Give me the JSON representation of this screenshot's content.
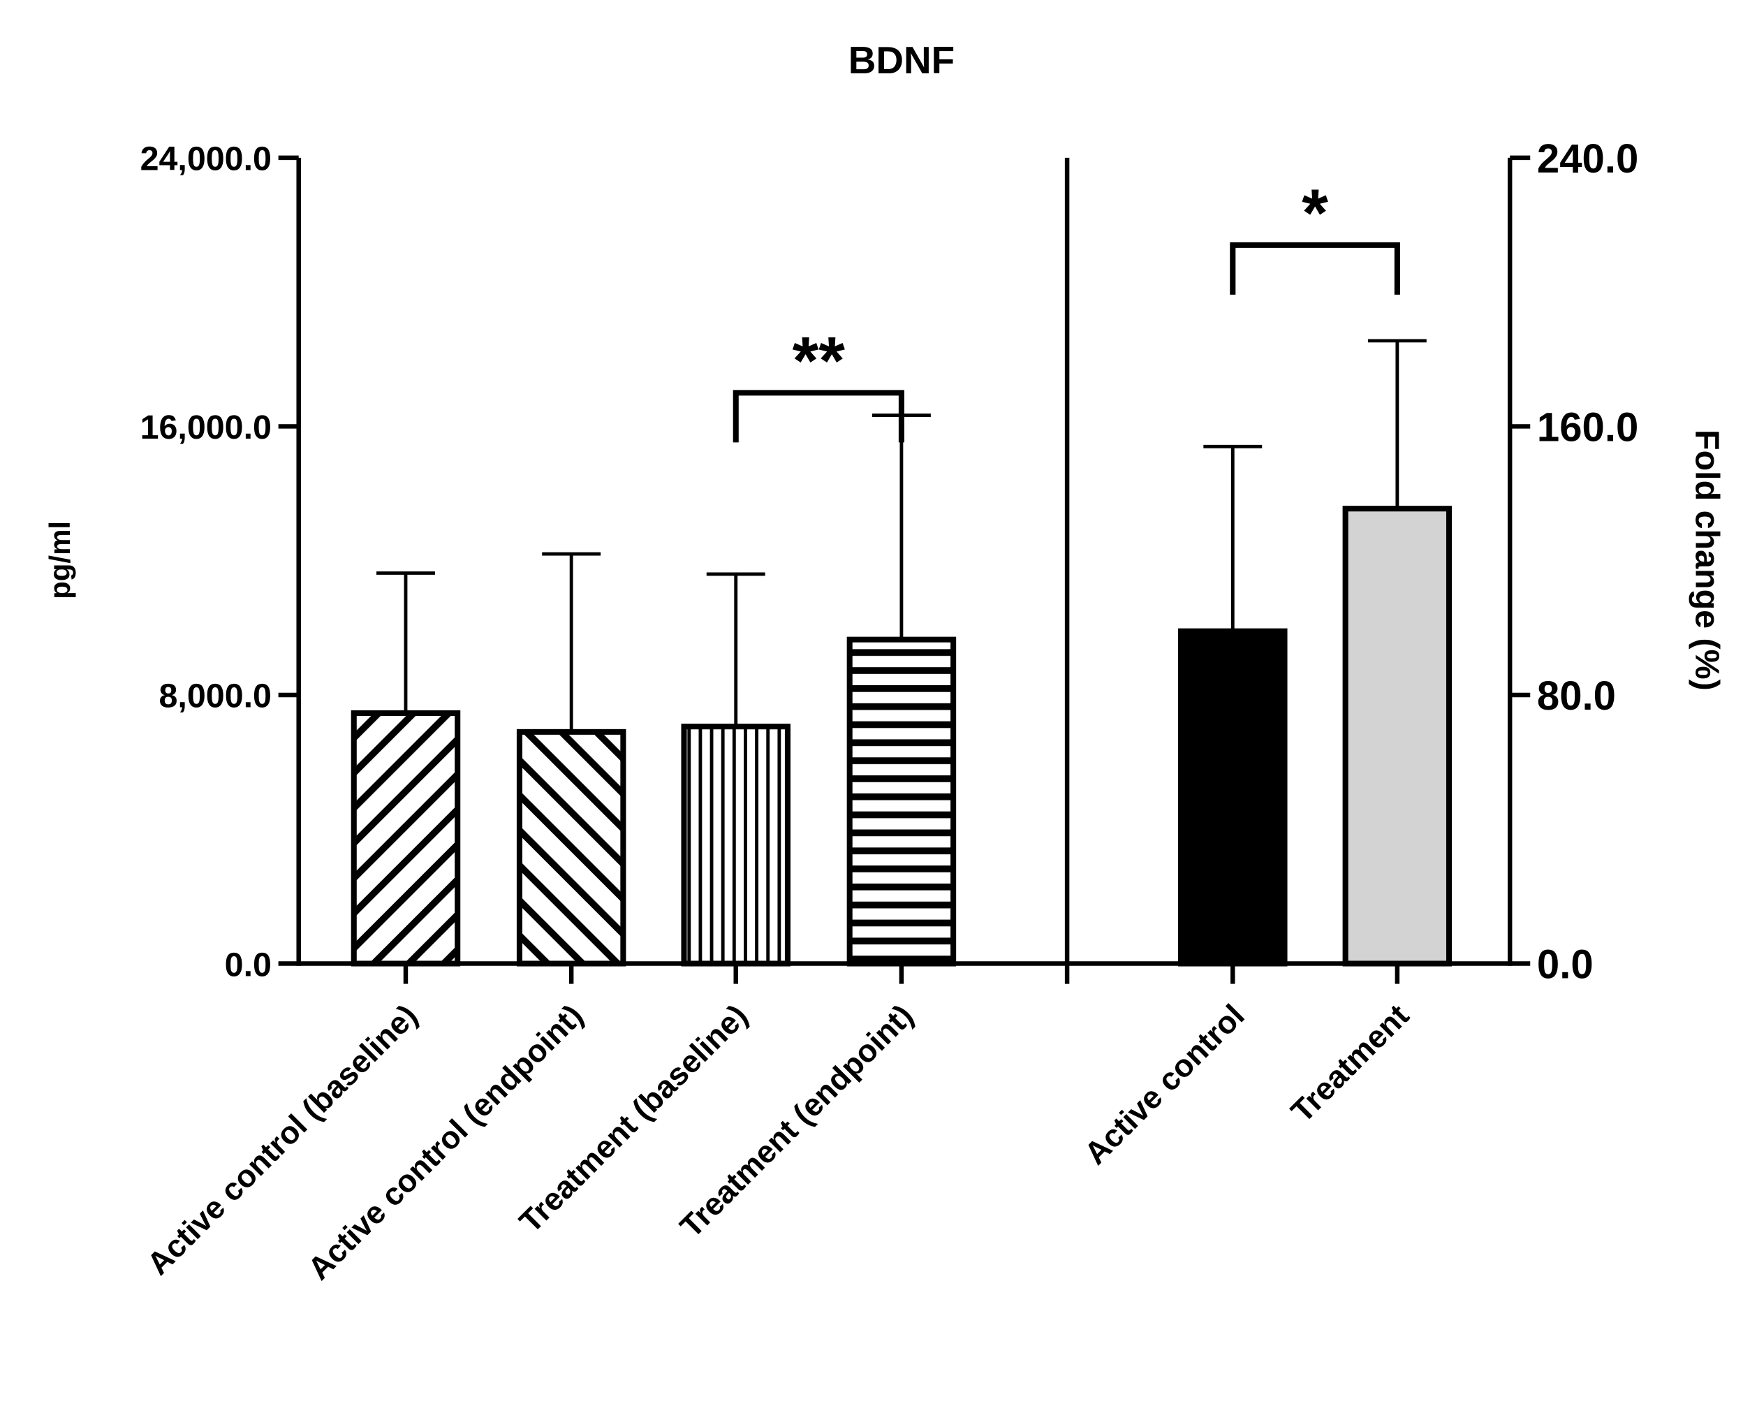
{
  "chart_data": {
    "type": "bar",
    "title": "BDNF",
    "panels": [
      {
        "name": "absolute",
        "ylabel": "pg/ml",
        "axis": "left",
        "ylim": [
          0,
          24000
        ],
        "yticks": [
          "0.0",
          "8,000.0",
          "16,000.0",
          "24,000.0"
        ],
        "ytick_values": [
          0,
          8000,
          16000,
          24000
        ],
        "categories": [
          "Active control (baseline)",
          "Active control (endpoint)",
          "Treatment (baseline)",
          "Treatment (endpoint)"
        ],
        "values": [
          7460,
          6900,
          7060,
          9650
        ],
        "error_upper": [
          11630,
          12200,
          11600,
          16330
        ],
        "patterns": [
          "diag-down",
          "diag-up",
          "vertical",
          "horizontal"
        ],
        "significance": {
          "between": [
            2,
            3
          ],
          "label": "**",
          "level": 17000
        }
      },
      {
        "name": "fold-change",
        "ylabel": "Fold change (%)",
        "axis": "right",
        "ylim": [
          0,
          240
        ],
        "yticks": [
          "0.0",
          "80.0",
          "160.0",
          "240.0"
        ],
        "ytick_values": [
          0,
          80,
          160,
          240
        ],
        "categories": [
          "Active control",
          "Treatment"
        ],
        "values": [
          99,
          135.5
        ],
        "error_upper": [
          154,
          185.5
        ],
        "colors": [
          "#000000",
          "#d3d3d3"
        ],
        "significance": {
          "between": [
            0,
            1
          ],
          "label": "*",
          "level": 214
        }
      }
    ]
  }
}
